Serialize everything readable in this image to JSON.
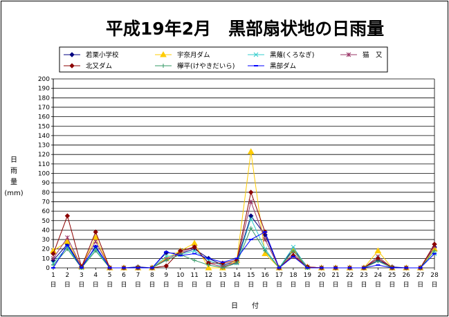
{
  "chart_data": {
    "type": "line",
    "title": "平成19年2月　黒部扇状地の日雨量",
    "ylabel": [
      "日",
      "雨",
      "量",
      "(mm)"
    ],
    "xlabel": "日　　付",
    "ylim": [
      0,
      200
    ],
    "ytick_step": 10,
    "grid": true,
    "legend": "top",
    "categories": [
      "1",
      "2",
      "3",
      "4",
      "5",
      "6",
      "7",
      "8",
      "9",
      "10",
      "11",
      "12",
      "13",
      "14",
      "15",
      "16",
      "17",
      "18",
      "19",
      "20",
      "21",
      "22",
      "23",
      "24",
      "25",
      "26",
      "27",
      "28"
    ],
    "category_suffix": "日",
    "series": [
      {
        "name": "若栗小学校",
        "color": "#000080",
        "marker": "diamond",
        "values": [
          8,
          25,
          1,
          22,
          0,
          0,
          1,
          0,
          16,
          15,
          20,
          10,
          3,
          7,
          55,
          35,
          0,
          20,
          1,
          0,
          0,
          0,
          0,
          8,
          1,
          0,
          0,
          22
        ]
      },
      {
        "name": "宇奈月ダム",
        "color": "#ffcc00",
        "marker": "triangle",
        "values": [
          18,
          28,
          1,
          32,
          0,
          0,
          0,
          0,
          10,
          18,
          26,
          0,
          0,
          8,
          123,
          15,
          0,
          18,
          1,
          0,
          0,
          0,
          0,
          18,
          0,
          0,
          0,
          20
        ]
      },
      {
        "name": "黒薙(くろなぎ)",
        "color": "#33cccc",
        "marker": "x",
        "values": [
          5,
          22,
          0,
          20,
          0,
          0,
          0,
          0,
          12,
          14,
          18,
          8,
          2,
          5,
          52,
          20,
          0,
          22,
          0,
          0,
          0,
          0,
          0,
          10,
          0,
          0,
          0,
          15
        ]
      },
      {
        "name": "猫　又",
        "color": "#993366",
        "marker": "star",
        "values": [
          10,
          32,
          1,
          28,
          0,
          0,
          0,
          0,
          9,
          16,
          22,
          5,
          1,
          6,
          70,
          30,
          0,
          15,
          1,
          0,
          0,
          0,
          0,
          12,
          0,
          0,
          0,
          23
        ]
      },
      {
        "name": "北又ダム",
        "color": "#8b0000",
        "marker": "diamond",
        "values": [
          15,
          55,
          1,
          38,
          0,
          0,
          0,
          0,
          2,
          18,
          22,
          5,
          5,
          8,
          80,
          38,
          0,
          13,
          1,
          0,
          0,
          0,
          0,
          10,
          0,
          0,
          0,
          25
        ]
      },
      {
        "name": "欅平(けやきだいら)",
        "color": "#339966",
        "marker": "plus",
        "values": [
          3,
          20,
          0,
          18,
          0,
          0,
          0,
          0,
          8,
          14,
          8,
          3,
          0,
          5,
          42,
          18,
          0,
          18,
          0,
          0,
          0,
          0,
          0,
          7,
          0,
          0,
          0,
          18
        ]
      },
      {
        "name": "黒部ダム",
        "color": "#0000ff",
        "marker": "dash",
        "values": [
          0,
          24,
          0,
          23,
          0,
          0,
          0,
          0,
          17,
          13,
          15,
          10,
          6,
          10,
          30,
          38,
          0,
          12,
          0,
          0,
          0,
          0,
          0,
          3,
          0,
          0,
          0,
          15
        ]
      }
    ]
  }
}
